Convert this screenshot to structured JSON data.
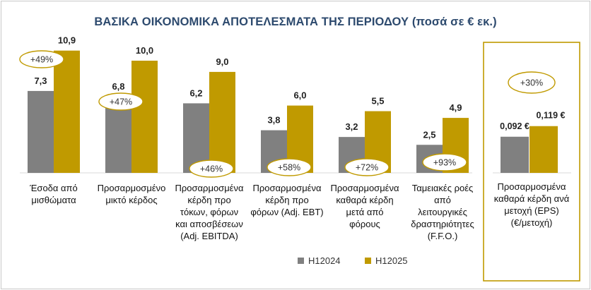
{
  "chart_data": {
    "type": "bar",
    "title": "ΒΑΣΙΚΑ ΟΙΚΟΝΟΜΙΚΑ ΑΠΟΤΕΛΕΣΜΑΤΑ ΤΗΣ ΠΕΡΙΟΔΟΥ (ποσά σε € εκ.)",
    "categories": [
      [
        "Έσοδα από",
        "μισθώματα"
      ],
      [
        "Προσαρμοσμένο",
        "μικτό κέρδος"
      ],
      [
        "Προσαρμοσμένα",
        "κέρδη προ",
        "τόκων, φόρων",
        "και αποσβέσεων",
        "(Adj. EBITDA)"
      ],
      [
        "Προσαρμοσμένα",
        "κέρδη προ",
        "φόρων (Adj. EBT)"
      ],
      [
        "Προσαρμοσμένα",
        "καθαρά κέρδη",
        "μετά από",
        "φόρους"
      ],
      [
        "Ταμειακές ροές",
        "από",
        "λειτουργικές",
        "δραστηριότητες",
        "(F.F.O.)"
      ]
    ],
    "series": [
      {
        "name": "H12024",
        "color": "#808080",
        "values": [
          7.3,
          6.8,
          6.2,
          3.8,
          3.2,
          2.5
        ],
        "labels": [
          "7,3",
          "6,8",
          "6,2",
          "3,8",
          "3,2",
          "2,5"
        ]
      },
      {
        "name": "H12025",
        "color": "#c09a00",
        "values": [
          10.9,
          10.0,
          9.0,
          6.0,
          5.5,
          4.9
        ],
        "labels": [
          "10,9",
          "10,0",
          "9,0",
          "6,0",
          "5,5",
          "4,9"
        ]
      }
    ],
    "growth_labels": [
      "+49%",
      "+47%",
      "+46%",
      "+58%",
      "+72%",
      "+93%"
    ],
    "ylim": [
      0,
      12
    ],
    "grid": false,
    "legend_position": "bottom",
    "eps": {
      "category": [
        "Προσαρμοσμένα",
        "καθαρά κέρδη ανά",
        "μετοχή (EPS)",
        "(€/μετοχή)"
      ],
      "values": [
        0.092,
        0.119
      ],
      "labels": [
        "0,092 €",
        "0,119 €"
      ],
      "growth_label": "+30%",
      "ylim": [
        0,
        0.5
      ]
    }
  }
}
